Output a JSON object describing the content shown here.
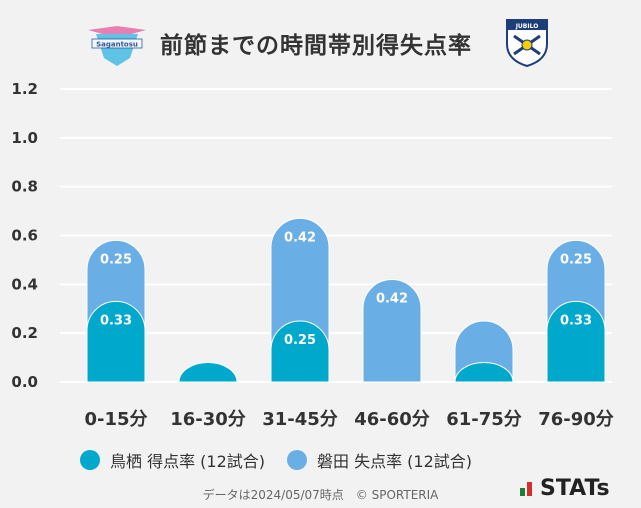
{
  "header": {
    "title": "前節までの時間帯別得失点率",
    "home_logo_text": "Sagantosu",
    "away_logo_text": "JUBILO"
  },
  "chart_data": {
    "type": "bar",
    "title": "前節までの時間帯別得失点率",
    "categories": [
      "0-15分",
      "16-30分",
      "31-45分",
      "46-60分",
      "61-75分",
      "76-90分"
    ],
    "series": [
      {
        "name": "鳥栖 得点率 (12試合)",
        "values": [
          0.33,
          0.08,
          0.25,
          0.0,
          0.08,
          0.33
        ],
        "labels": [
          "0.33",
          "",
          "0.25",
          "",
          "",
          "0.33"
        ],
        "color": "#00a8cc"
      },
      {
        "name": "磐田 失点率 (12試合)",
        "values": [
          0.25,
          0.0,
          0.42,
          0.42,
          0.17,
          0.25
        ],
        "labels": [
          "0.25",
          "",
          "0.42",
          "0.42",
          "",
          "0.25"
        ],
        "color": "#6aaee6"
      }
    ],
    "stacked": true,
    "ylim": [
      0,
      1.2
    ],
    "yticks": [
      "0.0",
      "0.2",
      "0.4",
      "0.6",
      "0.8",
      "1.0",
      "1.2"
    ],
    "grid": true,
    "legend": "bottom"
  },
  "footer": {
    "note": "データは2024/05/07時点　© SPORTERIA",
    "brand": "STATs"
  }
}
